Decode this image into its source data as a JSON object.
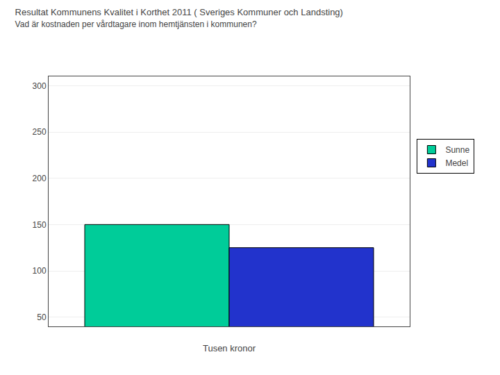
{
  "chart_data": {
    "type": "bar",
    "title": "Resultat Kommunens Kvalitet i Korthet 2011 ( Sveriges Kommuner och Landsting)",
    "subtitle": "Vad är kostnaden per vårdtagare inom hemtjänsten i kommunen?",
    "xlabel": "Tusen kronor",
    "categories": [
      null
    ],
    "series": [
      {
        "name": "Sunne",
        "color": "#00CC99",
        "values": [
          150
        ]
      },
      {
        "name": "Medel",
        "color": "#2233CC",
        "values": [
          125
        ]
      }
    ],
    "ylim": [
      40,
      310
    ],
    "yticks": [
      50,
      100,
      150,
      200,
      250,
      300
    ],
    "grid": true,
    "legend": "right",
    "tick_labels": "y"
  }
}
